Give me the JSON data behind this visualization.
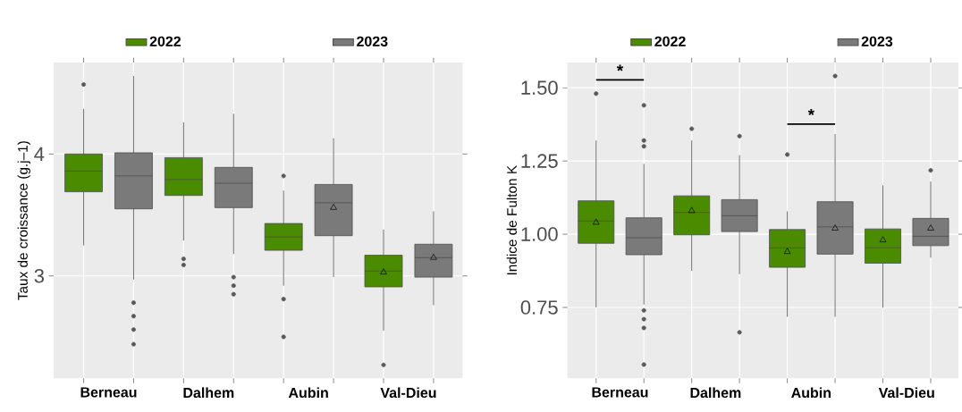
{
  "chart_data": [
    {
      "type": "box",
      "categories": [
        "Berneau",
        "Dalhem",
        "Aubin",
        "Val-Dieu"
      ],
      "ylabel": "Taux de croissance (g.j–1)",
      "ylim": [
        2.16,
        4.75
      ],
      "yticks": [
        3,
        4
      ],
      "grid": true,
      "legend": "top",
      "series": [
        {
          "name": "2022",
          "color": "#4b8b00",
          "boxes": [
            {
              "low": 3.25,
              "q1": 3.69,
              "median": 3.86,
              "q3": 4.0,
              "high": 4.37,
              "outliers": [
                4.57
              ]
            },
            {
              "low": 3.29,
              "q1": 3.66,
              "median": 3.79,
              "q3": 3.97,
              "high": 4.26,
              "outliers": [
                3.14,
                3.09
              ]
            },
            {
              "low": 2.92,
              "q1": 3.21,
              "median": 3.32,
              "q3": 3.43,
              "high": 3.7,
              "outliers": [
                3.82,
                2.81,
                2.5
              ]
            },
            {
              "low": 2.55,
              "q1": 2.91,
              "median": 3.04,
              "q3": 3.17,
              "high": 3.38,
              "mean": 3.03,
              "outliers": [
                2.27
              ]
            }
          ]
        },
        {
          "name": "2023",
          "color": "#7a7a7a",
          "boxes": [
            {
              "low": 2.97,
              "q1": 3.55,
              "median": 3.82,
              "q3": 4.01,
              "high": 4.64,
              "outliers": [
                2.78,
                2.67,
                2.56,
                2.44
              ]
            },
            {
              "low": 3.18,
              "q1": 3.56,
              "median": 3.76,
              "q3": 3.89,
              "high": 4.33,
              "outliers": [
                2.99,
                2.92,
                2.85
              ]
            },
            {
              "low": 2.99,
              "q1": 3.33,
              "median": 3.6,
              "q3": 3.75,
              "high": 4.13,
              "mean": 3.56
            },
            {
              "low": 2.76,
              "q1": 2.99,
              "median": 3.15,
              "q3": 3.26,
              "high": 3.53,
              "mean": 3.15
            }
          ]
        }
      ]
    },
    {
      "type": "box",
      "categories": [
        "Berneau",
        "Dalhem",
        "Aubin",
        "Val-Dieu"
      ],
      "ylabel": "Indice de Fulton K",
      "ylim": [
        0.508,
        1.586
      ],
      "yticks": [
        {
          "value": 0.75,
          "label": "0.75"
        },
        {
          "value": 1.0,
          "label": "1.00"
        },
        {
          "value": 1.25,
          "label": "1.25"
        },
        {
          "value": 1.5,
          "label": "1.50"
        }
      ],
      "grid": true,
      "legend": "top",
      "annotations": [
        "*",
        "*"
      ],
      "series": [
        {
          "name": "2022",
          "color": "#4b8b00",
          "boxes": [
            {
              "low": 0.75,
              "q1": 0.969,
              "median": 1.045,
              "q3": 1.114,
              "high": 1.32,
              "mean": 1.04,
              "outliers": [
                1.48
              ]
            },
            {
              "low": 0.875,
              "q1": 0.998,
              "median": 1.074,
              "q3": 1.131,
              "high": 1.32,
              "mean": 1.08,
              "outliers": [
                1.36
              ]
            },
            {
              "low": 0.718,
              "q1": 0.887,
              "median": 0.953,
              "q3": 1.016,
              "high": 1.078,
              "mean": 0.94,
              "outliers": [
                1.272
              ]
            },
            {
              "low": 0.749,
              "q1": 0.901,
              "median": 0.954,
              "q3": 1.018,
              "high": 1.167,
              "mean": 0.98
            }
          ]
        },
        {
          "name": "2023",
          "color": "#7a7a7a",
          "boxes": [
            {
              "low": 0.76,
              "q1": 0.93,
              "median": 0.988,
              "q3": 1.056,
              "high": 1.24,
              "outliers": [
                1.44,
                1.32,
                1.3,
                0.74,
                0.71,
                0.68,
                0.555
              ]
            },
            {
              "low": 0.864,
              "q1": 1.009,
              "median": 1.063,
              "q3": 1.118,
              "high": 1.27,
              "outliers": [
                1.335,
                0.665
              ]
            },
            {
              "low": 0.718,
              "q1": 0.932,
              "median": 1.025,
              "q3": 1.111,
              "high": 1.342,
              "mean": 1.02,
              "outliers": [
                1.54
              ]
            },
            {
              "low": 0.92,
              "q1": 0.961,
              "median": 0.993,
              "q3": 1.054,
              "high": 1.18,
              "mean": 1.02,
              "outliers": [
                1.218
              ]
            }
          ]
        }
      ]
    }
  ]
}
